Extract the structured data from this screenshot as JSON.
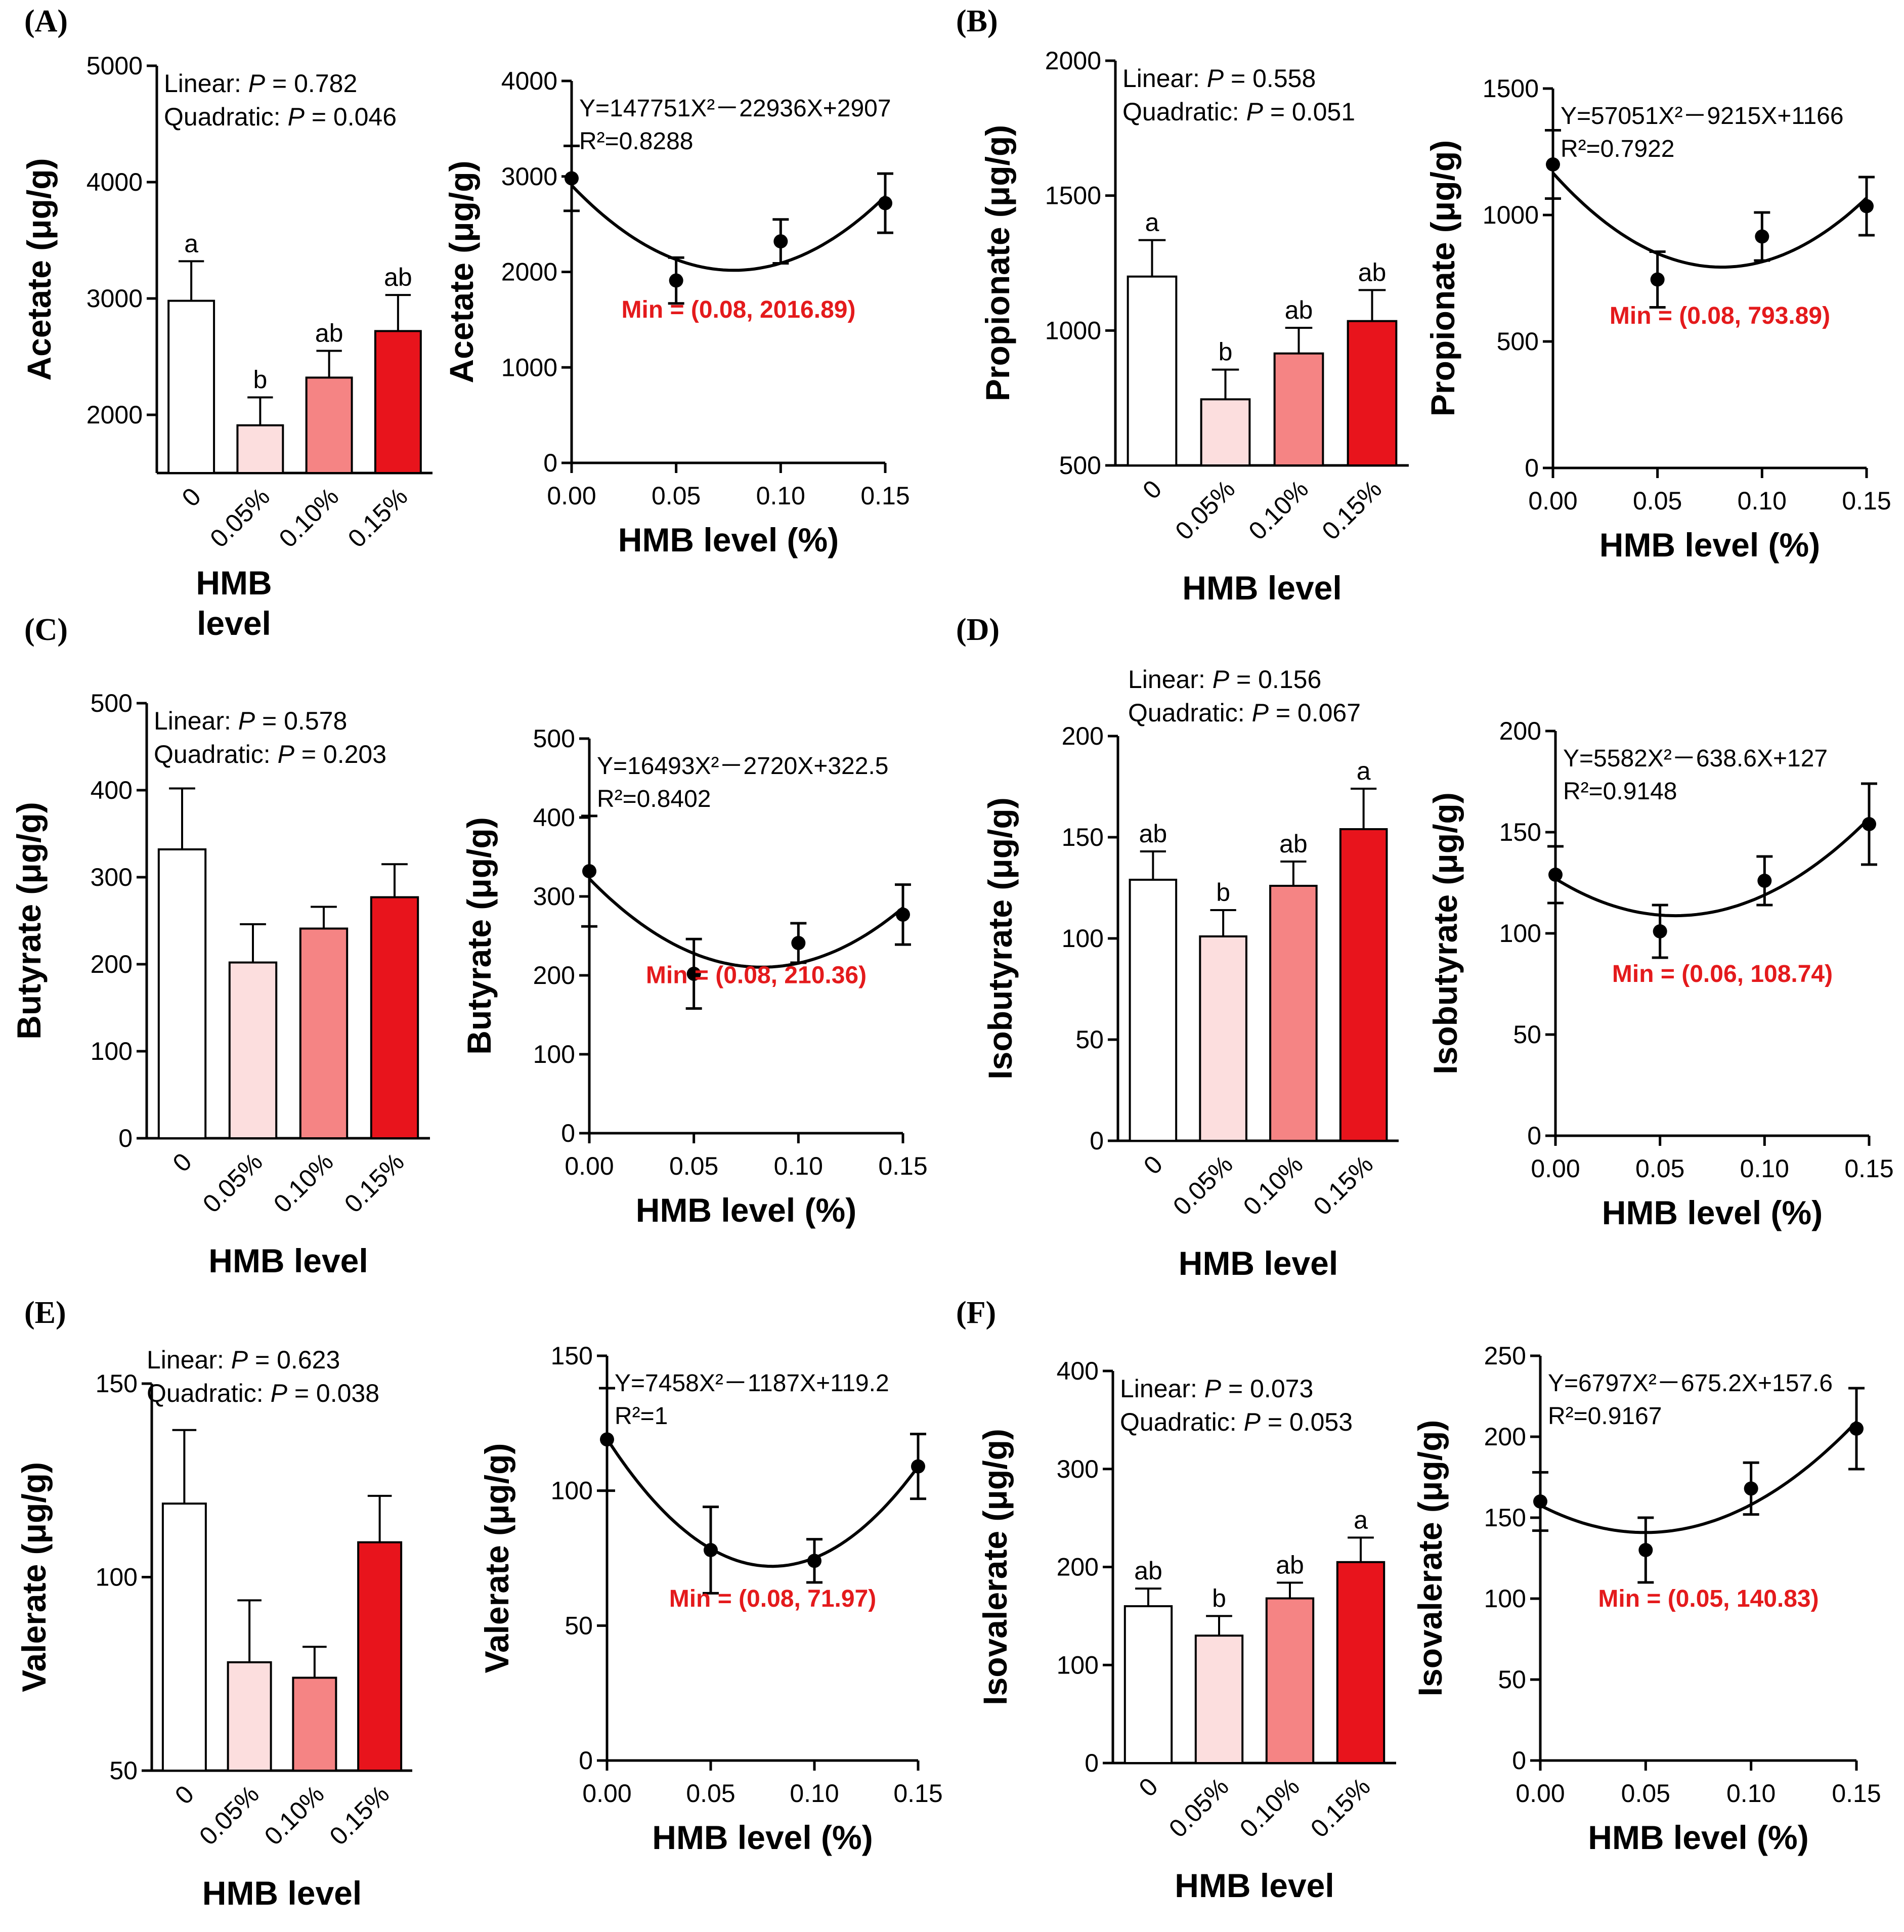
{
  "chart_data": [
    {
      "panel": "(A)",
      "bar": {
        "type": "bar",
        "ylabel": "Acetate (μg/g)",
        "xlabel": "HMB level",
        "categories": [
          "0",
          "0.05%",
          "0.10%",
          "0.15%"
        ],
        "values": [
          2980,
          1910,
          2320,
          2720
        ],
        "errors": [
          340,
          240,
          230,
          310
        ],
        "letters": [
          "a",
          "b",
          "ab",
          "ab"
        ],
        "colors": [
          "#ffffff",
          "#fcdede",
          "#f58484",
          "#e8141c"
        ],
        "ylim": [
          1500,
          5000
        ],
        "yticks": [
          2000,
          3000,
          4000,
          5000
        ],
        "stats": {
          "linear_label": "Linear: ",
          "linear_p": "P = 0.782",
          "quad_label": "Quadratic: ",
          "quad_p": "P = 0.046"
        }
      },
      "fit": {
        "type": "scatter",
        "ylabel": "Acetate (μg/g)",
        "xlabel": "HMB level (%)",
        "x": [
          0,
          0.05,
          0.1,
          0.15
        ],
        "y": [
          2980,
          1910,
          2320,
          2720
        ],
        "errors": [
          340,
          240,
          230,
          310
        ],
        "coef": [
          147751,
          -22936,
          2907
        ],
        "ylim": [
          0,
          4000
        ],
        "yticks": [
          0,
          1000,
          2000,
          3000,
          4000
        ],
        "xticks": [
          "0.00",
          "0.05",
          "0.10",
          "0.15"
        ],
        "equation": "Y=147751X²－22936X+2907",
        "r2": "R²=0.8288",
        "min_text": "Min = (0.08, 2016.89)"
      }
    },
    {
      "panel": "(B)",
      "bar": {
        "type": "bar",
        "ylabel": "Propionate (μg/g)",
        "xlabel": "HMB level",
        "categories": [
          "0",
          "0.05%",
          "0.10%",
          "0.15%"
        ],
        "values": [
          1200,
          745,
          915,
          1035
        ],
        "errors": [
          135,
          110,
          95,
          115
        ],
        "letters": [
          "a",
          "b",
          "ab",
          "ab"
        ],
        "colors": [
          "#ffffff",
          "#fcdede",
          "#f58484",
          "#e8141c"
        ],
        "ylim": [
          500,
          2000
        ],
        "yticks": [
          500,
          1000,
          1500,
          2000
        ],
        "stats": {
          "linear_label": "Linear: ",
          "linear_p": "P = 0.558",
          "quad_label": "Quadratic: ",
          "quad_p": "P = 0.051"
        }
      },
      "fit": {
        "type": "scatter",
        "ylabel": "Propionate (μg/g)",
        "xlabel": "HMB level (%)",
        "x": [
          0,
          0.05,
          0.1,
          0.15
        ],
        "y": [
          1200,
          745,
          915,
          1035
        ],
        "errors": [
          135,
          110,
          95,
          115
        ],
        "coef": [
          57051,
          -9215,
          1166
        ],
        "ylim": [
          0,
          1500
        ],
        "yticks": [
          0,
          500,
          1000,
          1500
        ],
        "xticks": [
          "0.00",
          "0.05",
          "0.10",
          "0.15"
        ],
        "equation": "Y=57051X²－9215X+1166",
        "r2": "R²=0.7922",
        "min_text": "Min = (0.08, 793.89)"
      }
    },
    {
      "panel": "(C)",
      "bar": {
        "type": "bar",
        "ylabel": "Butyrate (μg/g)",
        "xlabel": "HMB level",
        "categories": [
          "0",
          "0.05%",
          "0.10%",
          "0.15%"
        ],
        "values": [
          332,
          202,
          241,
          277
        ],
        "errors": [
          70,
          44,
          25,
          38
        ],
        "letters": [
          "",
          "",
          "",
          ""
        ],
        "colors": [
          "#ffffff",
          "#fcdede",
          "#f58484",
          "#e8141c"
        ],
        "ylim": [
          0,
          500
        ],
        "yticks": [
          0,
          100,
          200,
          300,
          400,
          500
        ],
        "stats": {
          "linear_label": "Linear: ",
          "linear_p": "P = 0.578",
          "quad_label": "Quadratic: ",
          "quad_p": "P = 0.203"
        }
      },
      "fit": {
        "type": "scatter",
        "ylabel": "Butyrate (μg/g)",
        "xlabel": "HMB level (%)",
        "x": [
          0,
          0.05,
          0.1,
          0.15
        ],
        "y": [
          332,
          202,
          241,
          277
        ],
        "errors": [
          70,
          44,
          25,
          38
        ],
        "coef": [
          16493,
          -2720,
          322.5
        ],
        "ylim": [
          0,
          500
        ],
        "yticks": [
          0,
          100,
          200,
          300,
          400,
          500
        ],
        "xticks": [
          "0.00",
          "0.05",
          "0.10",
          "0.15"
        ],
        "equation": "Y=16493X²－2720X+322.5",
        "r2": "R²=0.8402",
        "min_text": "Min = (0.08, 210.36)"
      }
    },
    {
      "panel": "(D)",
      "bar": {
        "type": "bar",
        "ylabel": "Isobutyrate (μg/g)",
        "xlabel": "HMB level",
        "categories": [
          "0",
          "0.05%",
          "0.10%",
          "0.15%"
        ],
        "values": [
          129,
          101,
          126,
          154
        ],
        "errors": [
          14,
          13,
          12,
          20
        ],
        "letters": [
          "ab",
          "b",
          "ab",
          "a"
        ],
        "colors": [
          "#ffffff",
          "#fcdede",
          "#f58484",
          "#e8141c"
        ],
        "ylim": [
          0,
          200
        ],
        "yticks": [
          0,
          50,
          100,
          150,
          200
        ],
        "stats": {
          "linear_label": "Linear: ",
          "linear_p": "P = 0.156",
          "quad_label": "Quadratic: ",
          "quad_p": "P = 0.067"
        }
      },
      "fit": {
        "type": "scatter",
        "ylabel": "Isobutyrate (μg/g)",
        "xlabel": "HMB level (%)",
        "x": [
          0,
          0.05,
          0.1,
          0.15
        ],
        "y": [
          129,
          101,
          126,
          154
        ],
        "errors": [
          14,
          13,
          12,
          20
        ],
        "coef": [
          5582,
          -638.6,
          127
        ],
        "ylim": [
          0,
          200
        ],
        "yticks": [
          0,
          50,
          100,
          150,
          200
        ],
        "xticks": [
          "0.00",
          "0.05",
          "0.10",
          "0.15"
        ],
        "equation": "Y=5582X²－638.6X+127",
        "r2": "R²=0.9148",
        "min_text": "Min = (0.06, 108.74)"
      }
    },
    {
      "panel": "(E)",
      "bar": {
        "type": "bar",
        "ylabel": "Valerate (μg/g)",
        "xlabel": "HMB level",
        "categories": [
          "0",
          "0.05%",
          "0.10%",
          "0.15%"
        ],
        "values": [
          119,
          78,
          74,
          109
        ],
        "errors": [
          19,
          16,
          8,
          12
        ],
        "letters": [
          "",
          "",
          "",
          ""
        ],
        "colors": [
          "#ffffff",
          "#fcdede",
          "#f58484",
          "#e8141c"
        ],
        "ylim": [
          50,
          150
        ],
        "yticks": [
          50,
          100,
          150
        ],
        "stats": {
          "linear_label": "Linear: ",
          "linear_p": "P = 0.623",
          "quad_label": "Quadratic: ",
          "quad_p": "P = 0.038"
        }
      },
      "fit": {
        "type": "scatter",
        "ylabel": "Valerate (μg/g)",
        "xlabel": "HMB level (%)",
        "x": [
          0,
          0.05,
          0.1,
          0.15
        ],
        "y": [
          119,
          78,
          74,
          109
        ],
        "errors": [
          19,
          16,
          8,
          12
        ],
        "coef": [
          7458,
          -1187,
          119.2
        ],
        "ylim": [
          0,
          150
        ],
        "yticks": [
          0,
          50,
          100,
          150
        ],
        "xticks": [
          "0.00",
          "0.05",
          "0.10",
          "0.15"
        ],
        "equation": "Y=7458X²－1187X+119.2",
        "r2": "R²=1",
        "min_text": "Min = (0.08, 71.97)"
      }
    },
    {
      "panel": "(F)",
      "bar": {
        "type": "bar",
        "ylabel": "Isovalerate (μg/g)",
        "xlabel": "HMB level",
        "categories": [
          "0",
          "0.05%",
          "0.10%",
          "0.15%"
        ],
        "values": [
          160,
          130,
          168,
          205
        ],
        "errors": [
          18,
          20,
          16,
          25
        ],
        "letters": [
          "ab",
          "b",
          "ab",
          "a"
        ],
        "colors": [
          "#ffffff",
          "#fcdede",
          "#f58484",
          "#e8141c"
        ],
        "ylim": [
          0,
          400
        ],
        "yticks": [
          0,
          100,
          200,
          300,
          400
        ],
        "stats": {
          "linear_label": "Linear: ",
          "linear_p": "P = 0.073",
          "quad_label": "Quadratic: ",
          "quad_p": "P = 0.053"
        }
      },
      "fit": {
        "type": "scatter",
        "ylabel": "Isovalerate (μg/g)",
        "xlabel": "HMB level (%)",
        "x": [
          0,
          0.05,
          0.1,
          0.15
        ],
        "y": [
          160,
          130,
          168,
          205
        ],
        "errors": [
          18,
          20,
          16,
          25
        ],
        "coef": [
          6797,
          -675.2,
          157.6
        ],
        "ylim": [
          0,
          250
        ],
        "yticks": [
          0,
          50,
          100,
          150,
          200,
          250
        ],
        "xticks": [
          "0.00",
          "0.05",
          "0.10",
          "0.15"
        ],
        "equation": "Y=6797X²－675.2X+157.6",
        "r2": "R²=0.9167",
        "min_text": "Min = (0.05, 140.83)"
      }
    }
  ]
}
